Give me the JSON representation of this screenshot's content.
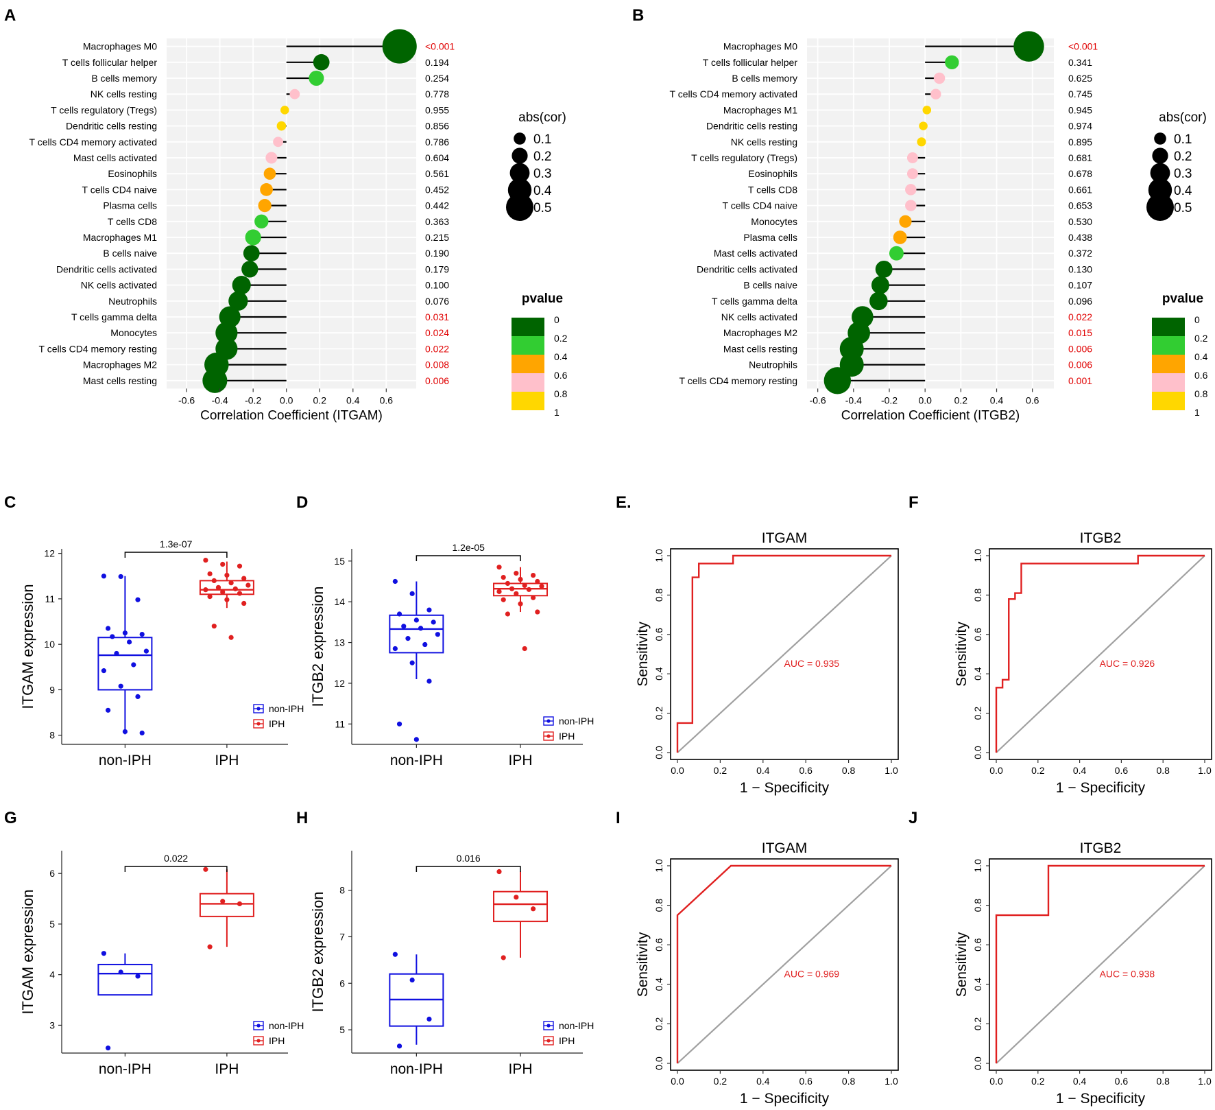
{
  "panels": {
    "A": "A",
    "B": "B",
    "C": "C",
    "D": "D",
    "E": "E.",
    "F": "F",
    "G": "G",
    "H": "H",
    "I": "I",
    "J": "J"
  },
  "colors": {
    "dark_green": "#006400",
    "green": "#32CD32",
    "orange": "#FFA500",
    "pink": "#FFC0CB",
    "gold": "#FFD700",
    "sig_red": "#E00000",
    "blue": "#1010E0",
    "red": "#E02020",
    "panel_bg": "#F2F2F2",
    "diag_gray": "#A0A0A0"
  },
  "legend": {
    "abs_title": "abs(cor)",
    "abs_values": [
      "0.1",
      "0.2",
      "0.3",
      "0.4",
      "0.5"
    ],
    "p_title": "pvalue",
    "p_values": [
      "0",
      "0.2",
      "0.4",
      "0.6",
      "0.8",
      "1"
    ],
    "p_swatches": [
      "#006400",
      "#32CD32",
      "#FFA500",
      "#FFC0CB",
      "#FFD700"
    ],
    "group_labels": [
      "non-IPH",
      "IPH"
    ]
  },
  "chart_data": [
    {
      "panel": "A",
      "type": "lollipop",
      "xlabel": "Correlation Coefficient (ITGAM)",
      "xlim": [
        -0.72,
        0.78
      ],
      "xticks": [
        "-0.6",
        "-0.4",
        "-0.2",
        "0.0",
        "0.2",
        "0.4",
        "0.6"
      ],
      "categories": [
        "Macrophages M0",
        "T cells follicular helper",
        "B cells memory",
        "NK cells resting",
        "T cells regulatory (Tregs)",
        "Dendritic cells resting",
        "T cells CD4 memory activated",
        "Mast cells activated",
        "Eosinophils",
        "T cells CD4 naive",
        "Plasma cells",
        "T cells CD8",
        "Macrophages M1",
        "B cells naive",
        "Dendritic cells activated",
        "NK cells activated",
        "Neutrophils",
        "T cells gamma delta",
        "Monocytes",
        "T cells CD4 memory resting",
        "Macrophages M2",
        "Mast cells resting"
      ],
      "values": [
        0.68,
        0.21,
        0.18,
        0.05,
        -0.01,
        -0.03,
        -0.05,
        -0.09,
        -0.1,
        -0.12,
        -0.13,
        -0.15,
        -0.2,
        -0.21,
        -0.22,
        -0.27,
        -0.29,
        -0.34,
        -0.36,
        -0.36,
        -0.42,
        -0.43
      ],
      "pvalues": [
        "<0.001",
        "0.194",
        "0.254",
        "0.778",
        "0.955",
        "0.856",
        "0.786",
        "0.604",
        "0.561",
        "0.452",
        "0.442",
        "0.363",
        "0.215",
        "0.190",
        "0.179",
        "0.100",
        "0.076",
        "0.031",
        "0.024",
        "0.022",
        "0.008",
        "0.006"
      ]
    },
    {
      "panel": "B",
      "type": "lollipop",
      "xlabel": "Correlation Coefficient (ITGB2)",
      "xlim": [
        -0.66,
        0.72
      ],
      "xticks": [
        "-0.6",
        "-0.4",
        "-0.2",
        "0.0",
        "0.2",
        "0.4",
        "0.6"
      ],
      "categories": [
        "Macrophages M0",
        "T cells follicular helper",
        "B cells memory",
        "T cells CD4 memory activated",
        "Macrophages M1",
        "Dendritic cells resting",
        "NK cells resting",
        "T cells regulatory (Tregs)",
        "Eosinophils",
        "T cells CD8",
        "T cells CD4 naive",
        "Monocytes",
        "Plasma cells",
        "Mast cells activated",
        "Dendritic cells activated",
        "B cells naive",
        "T cells gamma delta",
        "NK cells activated",
        "Macrophages M2",
        "Mast cells resting",
        "Neutrophils",
        "T cells CD4 memory resting"
      ],
      "values": [
        0.58,
        0.15,
        0.08,
        0.06,
        0.01,
        -0.01,
        -0.02,
        -0.07,
        -0.07,
        -0.08,
        -0.08,
        -0.11,
        -0.14,
        -0.16,
        -0.23,
        -0.25,
        -0.26,
        -0.35,
        -0.37,
        -0.41,
        -0.41,
        -0.49
      ],
      "pvalues": [
        "<0.001",
        "0.341",
        "0.625",
        "0.745",
        "0.945",
        "0.974",
        "0.895",
        "0.681",
        "0.678",
        "0.661",
        "0.653",
        "0.530",
        "0.438",
        "0.372",
        "0.130",
        "0.107",
        "0.096",
        "0.022",
        "0.015",
        "0.006",
        "0.006",
        "0.001"
      ]
    },
    {
      "panel": "C",
      "type": "box",
      "ylabel": "ITGAM expression",
      "categories": [
        "non-IPH",
        "IPH"
      ],
      "ylim": [
        7.8,
        12.1
      ],
      "yticks": [
        8,
        9,
        10,
        11,
        12
      ],
      "pvalue": "1.3e-07",
      "boxes": [
        {
          "q1": 9.0,
          "median": 9.76,
          "q3": 10.15,
          "lo": 8.02,
          "hi": 11.5
        },
        {
          "q1": 11.1,
          "median": 11.2,
          "q3": 11.4,
          "lo": 10.8,
          "hi": 11.82
        }
      ],
      "points": [
        [
          11.5,
          11.49,
          10.98,
          10.35,
          10.25,
          10.22,
          10.17,
          10.05,
          9.85,
          9.8,
          9.55,
          9.42,
          9.08,
          8.85,
          8.55,
          8.08,
          8.05
        ],
        [
          11.85,
          11.76,
          11.72,
          11.55,
          11.52,
          11.45,
          11.4,
          11.35,
          11.3,
          11.25,
          11.22,
          11.2,
          11.15,
          11.12,
          11.05,
          10.98,
          10.9,
          10.4,
          10.15
        ]
      ]
    },
    {
      "panel": "D",
      "type": "box",
      "ylabel": "ITGB2 expression",
      "categories": [
        "non-IPH",
        "IPH"
      ],
      "ylim": [
        10.5,
        15.3
      ],
      "yticks": [
        11,
        12,
        13,
        14,
        15
      ],
      "pvalue": "1.2e-05",
      "boxes": [
        {
          "q1": 12.75,
          "median": 13.33,
          "q3": 13.67,
          "lo": 12.1,
          "hi": 14.5
        },
        {
          "q1": 14.15,
          "median": 14.32,
          "q3": 14.45,
          "lo": 13.75,
          "hi": 14.85
        }
      ],
      "points": [
        [
          14.5,
          14.2,
          13.8,
          13.7,
          13.55,
          13.5,
          13.4,
          13.35,
          13.2,
          13.1,
          12.95,
          12.85,
          12.5,
          12.05,
          11.0,
          10.62
        ],
        [
          14.85,
          14.7,
          14.65,
          14.6,
          14.55,
          14.5,
          14.45,
          14.4,
          14.38,
          14.32,
          14.3,
          14.25,
          14.2,
          14.1,
          14.05,
          13.95,
          13.75,
          13.7,
          12.85
        ]
      ]
    },
    {
      "panel": "G",
      "type": "box",
      "ylabel": "ITGAM expression",
      "categories": [
        "non-IPH",
        "IPH"
      ],
      "ylim": [
        2.45,
        6.45
      ],
      "yticks": [
        3,
        4,
        5,
        6
      ],
      "pvalue": "0.022",
      "boxes": [
        {
          "q1": 3.6,
          "median": 4.02,
          "q3": 4.2,
          "lo": 3.6,
          "hi": 4.42
        },
        {
          "q1": 5.15,
          "median": 5.4,
          "q3": 5.6,
          "lo": 4.55,
          "hi": 6.08
        }
      ],
      "points": [
        [
          4.42,
          4.05,
          3.97,
          2.55
        ],
        [
          6.08,
          5.45,
          5.4,
          4.55
        ]
      ]
    },
    {
      "panel": "H",
      "type": "box",
      "ylabel": "ITGB2 expression",
      "categories": [
        "non-IPH",
        "IPH"
      ],
      "ylim": [
        4.5,
        8.85
      ],
      "yticks": [
        5,
        6,
        7,
        8
      ],
      "pvalue": "0.016",
      "boxes": [
        {
          "q1": 5.08,
          "median": 5.65,
          "q3": 6.2,
          "lo": 4.68,
          "hi": 6.62
        },
        {
          "q1": 7.33,
          "median": 7.7,
          "q3": 7.97,
          "lo": 6.55,
          "hi": 8.4
        }
      ],
      "points": [
        [
          6.62,
          6.07,
          5.23,
          4.65
        ],
        [
          8.4,
          7.85,
          7.6,
          6.55
        ]
      ]
    },
    {
      "panel": "E",
      "type": "roc",
      "title": "ITGAM",
      "xlabel": "1 − Specificity",
      "ylabel": "Sensitivity",
      "auc": "AUC = 0.935",
      "ticks": [
        "0.0",
        "0.2",
        "0.4",
        "0.6",
        "0.8",
        "1.0"
      ],
      "curve": [
        [
          0,
          0
        ],
        [
          0,
          0.15
        ],
        [
          0.07,
          0.15
        ],
        [
          0.07,
          0.89
        ],
        [
          0.1,
          0.89
        ],
        [
          0.1,
          0.96
        ],
        [
          0.14,
          0.96
        ],
        [
          0.14,
          0.96
        ],
        [
          0.26,
          0.96
        ],
        [
          0.26,
          1.0
        ],
        [
          1.0,
          1.0
        ]
      ]
    },
    {
      "panel": "F",
      "type": "roc",
      "title": "ITGB2",
      "xlabel": "1 − Specificity",
      "ylabel": "Sensitivity",
      "auc": "AUC = 0.926",
      "ticks": [
        "0.0",
        "0.2",
        "0.4",
        "0.6",
        "0.8",
        "1.0"
      ],
      "curve": [
        [
          0,
          0
        ],
        [
          0,
          0.33
        ],
        [
          0.03,
          0.33
        ],
        [
          0.03,
          0.37
        ],
        [
          0.06,
          0.37
        ],
        [
          0.06,
          0.78
        ],
        [
          0.09,
          0.78
        ],
        [
          0.09,
          0.81
        ],
        [
          0.12,
          0.81
        ],
        [
          0.12,
          0.96
        ],
        [
          0.68,
          0.96
        ],
        [
          0.68,
          1.0
        ],
        [
          1.0,
          1.0
        ]
      ]
    },
    {
      "panel": "I",
      "type": "roc",
      "title": "ITGAM",
      "xlabel": "1 − Specificity",
      "ylabel": "Sensitivity",
      "auc": "AUC = 0.969",
      "ticks": [
        "0.0",
        "0.2",
        "0.4",
        "0.6",
        "0.8",
        "1.0"
      ],
      "curve": [
        [
          0,
          0
        ],
        [
          0,
          0.75
        ],
        [
          0.25,
          1.0
        ],
        [
          1.0,
          1.0
        ]
      ]
    },
    {
      "panel": "J",
      "type": "roc",
      "title": "ITGB2",
      "xlabel": "1 − Specificity",
      "ylabel": "Sensitivity",
      "auc": "AUC = 0.938",
      "ticks": [
        "0.0",
        "0.2",
        "0.4",
        "0.6",
        "0.8",
        "1.0"
      ],
      "curve": [
        [
          0,
          0
        ],
        [
          0,
          0.75
        ],
        [
          0.25,
          0.75
        ],
        [
          0.25,
          1.0
        ],
        [
          1.0,
          1.0
        ]
      ]
    }
  ]
}
